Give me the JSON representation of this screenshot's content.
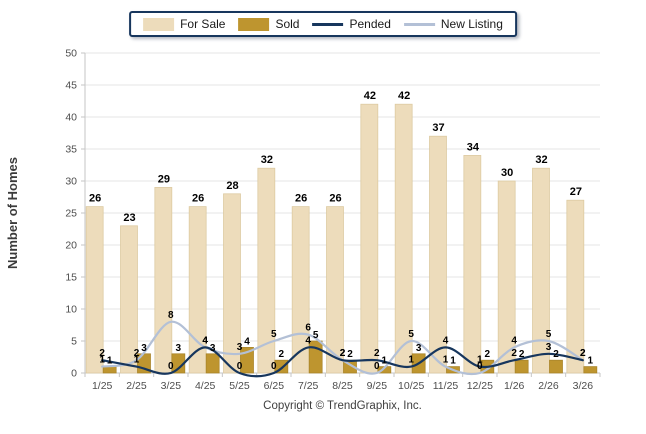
{
  "legend": {
    "items": [
      {
        "label": "For Sale",
        "type": "bar",
        "color": "#EDDCBB"
      },
      {
        "label": "Sold",
        "type": "bar",
        "color": "#BE952F"
      },
      {
        "label": "Pended",
        "type": "line",
        "color": "#17365D"
      },
      {
        "label": "New Listing",
        "type": "line",
        "color": "#B3C0D6"
      }
    ]
  },
  "footer": {
    "copyright": "Copyright © TrendGraphix, Inc."
  },
  "chart_data": {
    "type": "bar+line",
    "title": "",
    "xlabel": "",
    "ylabel": "Number of Homes",
    "ylim": [
      0,
      50
    ],
    "ytick_step": 5,
    "grid": true,
    "legend_position": "top",
    "categories": [
      "1/25",
      "2/25",
      "3/25",
      "4/25",
      "5/25",
      "6/25",
      "7/25",
      "8/25",
      "9/25",
      "10/25",
      "11/25",
      "12/25",
      "1/26",
      "2/26",
      "3/26"
    ],
    "series": [
      {
        "name": "For Sale",
        "type": "bar",
        "color": "#EDDCBB",
        "edge": "#DCC9A0",
        "values": [
          26,
          23,
          29,
          26,
          28,
          32,
          26,
          26,
          42,
          42,
          37,
          34,
          30,
          32,
          27
        ]
      },
      {
        "name": "Sold",
        "type": "bar",
        "color": "#BE952F",
        "edge": "#A8842A",
        "values": [
          1,
          3,
          3,
          3,
          4,
          2,
          5,
          2,
          1,
          3,
          1,
          2,
          2,
          2,
          1
        ]
      },
      {
        "name": "Pended",
        "type": "line",
        "color": "#17365D",
        "values": [
          2,
          1,
          0,
          4,
          0,
          0,
          4,
          2,
          2,
          1,
          4,
          1,
          2,
          3,
          2
        ]
      },
      {
        "name": "New Listing",
        "type": "line",
        "color": "#B3C0D6",
        "values": [
          1,
          2,
          8,
          4,
          3,
          5,
          6,
          2,
          0,
          5,
          1,
          0,
          4,
          5,
          2
        ]
      }
    ],
    "colors": {
      "grid": "#E4E4E4",
      "axis": "#C6C6C6",
      "tick_label": "#4d4d4d",
      "data_label": "#000000"
    }
  }
}
